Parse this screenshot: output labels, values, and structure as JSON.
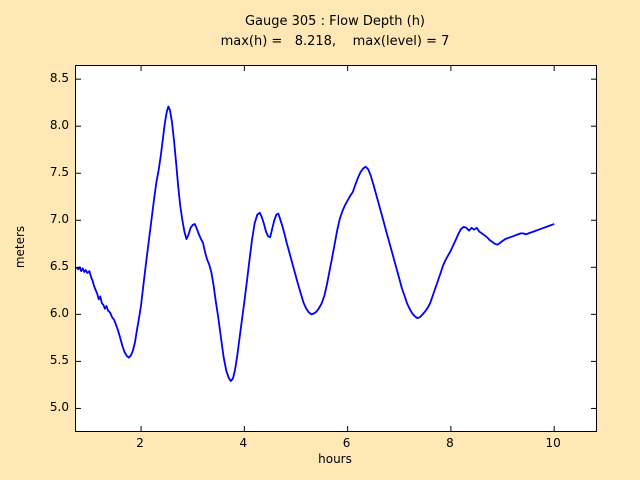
{
  "figure": {
    "background": "#FFE8B6",
    "plot_background": "#FFFFFF"
  },
  "chart_data": {
    "type": "line",
    "title": "Gauge 305 : Flow Depth (h)",
    "subtitle": "max(h) =   8.218,    max(level) = 7",
    "max_h": 8.218,
    "max_level": 7,
    "xlabel": "hours",
    "ylabel": "meters",
    "xlim": [
      0.74,
      10.81
    ],
    "ylim": [
      4.76,
      8.64
    ],
    "x_ticks": [
      2,
      4,
      6,
      8,
      10
    ],
    "x_tick_labels": [
      "2",
      "4",
      "6",
      "8",
      "10"
    ],
    "y_ticks": [
      5.0,
      5.5,
      6.0,
      6.5,
      7.0,
      7.5,
      8.0,
      8.5
    ],
    "y_tick_labels": [
      "5.0",
      "5.5",
      "6.0",
      "6.5",
      "7.0",
      "7.5",
      "8.0",
      "8.5"
    ],
    "grid": false,
    "legend": "none",
    "line_color": "#0000FF",
    "series": [
      {
        "name": "h",
        "points": [
          [
            0.75,
            6.5
          ],
          [
            0.78,
            6.48
          ],
          [
            0.81,
            6.5
          ],
          [
            0.84,
            6.46
          ],
          [
            0.87,
            6.49
          ],
          [
            0.9,
            6.45
          ],
          [
            0.93,
            6.47
          ],
          [
            0.96,
            6.44
          ],
          [
            1.0,
            6.46
          ],
          [
            1.03,
            6.4
          ],
          [
            1.06,
            6.36
          ],
          [
            1.09,
            6.3
          ],
          [
            1.12,
            6.26
          ],
          [
            1.15,
            6.22
          ],
          [
            1.18,
            6.16
          ],
          [
            1.21,
            6.19
          ],
          [
            1.24,
            6.12
          ],
          [
            1.27,
            6.1
          ],
          [
            1.3,
            6.06
          ],
          [
            1.33,
            6.09
          ],
          [
            1.36,
            6.04
          ],
          [
            1.4,
            6.02
          ],
          [
            1.44,
            5.97
          ],
          [
            1.48,
            5.94
          ],
          [
            1.52,
            5.88
          ],
          [
            1.56,
            5.82
          ],
          [
            1.6,
            5.74
          ],
          [
            1.64,
            5.66
          ],
          [
            1.68,
            5.6
          ],
          [
            1.72,
            5.56
          ],
          [
            1.76,
            5.54
          ],
          [
            1.8,
            5.56
          ],
          [
            1.84,
            5.61
          ],
          [
            1.88,
            5.7
          ],
          [
            1.92,
            5.83
          ],
          [
            1.96,
            5.96
          ],
          [
            2.0,
            6.1
          ],
          [
            2.05,
            6.33
          ],
          [
            2.1,
            6.56
          ],
          [
            2.15,
            6.78
          ],
          [
            2.2,
            7.0
          ],
          [
            2.25,
            7.22
          ],
          [
            2.3,
            7.42
          ],
          [
            2.34,
            7.53
          ],
          [
            2.38,
            7.68
          ],
          [
            2.42,
            7.86
          ],
          [
            2.46,
            8.03
          ],
          [
            2.5,
            8.16
          ],
          [
            2.53,
            8.21
          ],
          [
            2.56,
            8.17
          ],
          [
            2.6,
            8.04
          ],
          [
            2.64,
            7.84
          ],
          [
            2.68,
            7.6
          ],
          [
            2.72,
            7.36
          ],
          [
            2.76,
            7.15
          ],
          [
            2.8,
            7.0
          ],
          [
            2.84,
            6.88
          ],
          [
            2.88,
            6.8
          ],
          [
            2.92,
            6.85
          ],
          [
            2.96,
            6.92
          ],
          [
            3.0,
            6.95
          ],
          [
            3.04,
            6.96
          ],
          [
            3.08,
            6.91
          ],
          [
            3.12,
            6.85
          ],
          [
            3.16,
            6.8
          ],
          [
            3.2,
            6.76
          ],
          [
            3.24,
            6.66
          ],
          [
            3.28,
            6.58
          ],
          [
            3.32,
            6.53
          ],
          [
            3.36,
            6.45
          ],
          [
            3.4,
            6.32
          ],
          [
            3.45,
            6.13
          ],
          [
            3.5,
            5.95
          ],
          [
            3.55,
            5.74
          ],
          [
            3.6,
            5.54
          ],
          [
            3.65,
            5.4
          ],
          [
            3.7,
            5.32
          ],
          [
            3.74,
            5.29
          ],
          [
            3.78,
            5.32
          ],
          [
            3.82,
            5.41
          ],
          [
            3.86,
            5.55
          ],
          [
            3.9,
            5.72
          ],
          [
            3.95,
            5.93
          ],
          [
            4.0,
            6.13
          ],
          [
            4.05,
            6.35
          ],
          [
            4.1,
            6.58
          ],
          [
            4.15,
            6.8
          ],
          [
            4.2,
            6.97
          ],
          [
            4.25,
            7.06
          ],
          [
            4.3,
            7.08
          ],
          [
            4.34,
            7.03
          ],
          [
            4.38,
            6.96
          ],
          [
            4.42,
            6.88
          ],
          [
            4.46,
            6.83
          ],
          [
            4.5,
            6.82
          ],
          [
            4.54,
            6.91
          ],
          [
            4.58,
            7.0
          ],
          [
            4.62,
            7.06
          ],
          [
            4.66,
            7.07
          ],
          [
            4.7,
            7.0
          ],
          [
            4.74,
            6.93
          ],
          [
            4.78,
            6.85
          ],
          [
            4.82,
            6.76
          ],
          [
            4.86,
            6.68
          ],
          [
            4.9,
            6.6
          ],
          [
            4.95,
            6.5
          ],
          [
            5.0,
            6.4
          ],
          [
            5.05,
            6.3
          ],
          [
            5.1,
            6.21
          ],
          [
            5.15,
            6.12
          ],
          [
            5.2,
            6.06
          ],
          [
            5.25,
            6.02
          ],
          [
            5.3,
            6.0
          ],
          [
            5.35,
            6.01
          ],
          [
            5.4,
            6.03
          ],
          [
            5.45,
            6.07
          ],
          [
            5.5,
            6.12
          ],
          [
            5.55,
            6.2
          ],
          [
            5.6,
            6.32
          ],
          [
            5.65,
            6.46
          ],
          [
            5.7,
            6.6
          ],
          [
            5.75,
            6.75
          ],
          [
            5.8,
            6.9
          ],
          [
            5.85,
            7.02
          ],
          [
            5.9,
            7.1
          ],
          [
            5.95,
            7.16
          ],
          [
            6.0,
            7.21
          ],
          [
            6.05,
            7.26
          ],
          [
            6.1,
            7.3
          ],
          [
            6.15,
            7.38
          ],
          [
            6.2,
            7.45
          ],
          [
            6.25,
            7.51
          ],
          [
            6.3,
            7.55
          ],
          [
            6.35,
            7.57
          ],
          [
            6.4,
            7.54
          ],
          [
            6.45,
            7.47
          ],
          [
            6.5,
            7.38
          ],
          [
            6.55,
            7.28
          ],
          [
            6.6,
            7.18
          ],
          [
            6.65,
            7.08
          ],
          [
            6.7,
            6.98
          ],
          [
            6.75,
            6.88
          ],
          [
            6.8,
            6.78
          ],
          [
            6.85,
            6.68
          ],
          [
            6.9,
            6.58
          ],
          [
            6.95,
            6.48
          ],
          [
            7.0,
            6.38
          ],
          [
            7.05,
            6.28
          ],
          [
            7.1,
            6.2
          ],
          [
            7.15,
            6.12
          ],
          [
            7.2,
            6.06
          ],
          [
            7.25,
            6.01
          ],
          [
            7.3,
            5.98
          ],
          [
            7.35,
            5.96
          ],
          [
            7.4,
            5.97
          ],
          [
            7.45,
            6.0
          ],
          [
            7.5,
            6.03
          ],
          [
            7.55,
            6.07
          ],
          [
            7.6,
            6.12
          ],
          [
            7.65,
            6.2
          ],
          [
            7.7,
            6.28
          ],
          [
            7.75,
            6.36
          ],
          [
            7.8,
            6.44
          ],
          [
            7.85,
            6.52
          ],
          [
            7.9,
            6.58
          ],
          [
            7.95,
            6.63
          ],
          [
            8.0,
            6.68
          ],
          [
            8.05,
            6.74
          ],
          [
            8.1,
            6.8
          ],
          [
            8.15,
            6.86
          ],
          [
            8.2,
            6.91
          ],
          [
            8.25,
            6.93
          ],
          [
            8.3,
            6.92
          ],
          [
            8.35,
            6.89
          ],
          [
            8.4,
            6.92
          ],
          [
            8.45,
            6.9
          ],
          [
            8.5,
            6.92
          ],
          [
            8.55,
            6.88
          ],
          [
            8.6,
            6.86
          ],
          [
            8.65,
            6.84
          ],
          [
            8.7,
            6.82
          ],
          [
            8.75,
            6.79
          ],
          [
            8.8,
            6.77
          ],
          [
            8.85,
            6.75
          ],
          [
            8.9,
            6.74
          ],
          [
            8.95,
            6.76
          ],
          [
            9.0,
            6.78
          ],
          [
            9.05,
            6.8
          ],
          [
            9.1,
            6.81
          ],
          [
            9.15,
            6.82
          ],
          [
            9.2,
            6.83
          ],
          [
            9.25,
            6.84
          ],
          [
            9.3,
            6.85
          ],
          [
            9.35,
            6.86
          ],
          [
            9.4,
            6.86
          ],
          [
            9.45,
            6.85
          ],
          [
            9.5,
            6.86
          ],
          [
            9.55,
            6.87
          ],
          [
            9.6,
            6.88
          ],
          [
            9.65,
            6.89
          ],
          [
            9.7,
            6.9
          ],
          [
            9.75,
            6.91
          ],
          [
            9.8,
            6.92
          ],
          [
            9.85,
            6.93
          ],
          [
            9.9,
            6.94
          ],
          [
            9.95,
            6.95
          ],
          [
            10.0,
            6.96
          ]
        ]
      }
    ]
  }
}
